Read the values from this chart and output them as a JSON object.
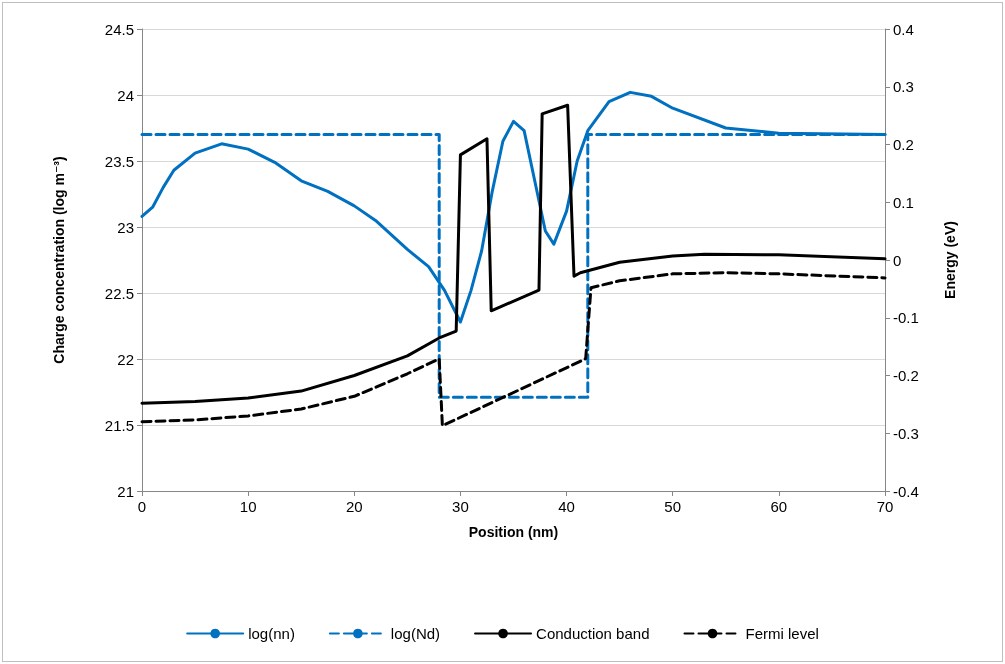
{
  "chart_data": {
    "type": "line",
    "xlabel": "Position (nm)",
    "ylabel": "Charge concentration (log m⁻³)",
    "y2label": "Energy (eV)",
    "xlim": [
      0,
      70
    ],
    "xticks": [
      0,
      10,
      20,
      30,
      40,
      50,
      60,
      70
    ],
    "ylim": [
      21,
      24.5
    ],
    "yticks": [
      21,
      21.5,
      22,
      22.5,
      23,
      23.5,
      24,
      24.5
    ],
    "y2lim": [
      -0.4,
      0.4
    ],
    "y2ticks": [
      -0.4,
      -0.3,
      -0.2,
      -0.1,
      0,
      0.1,
      0.2,
      0.3,
      0.4
    ],
    "grid": "y",
    "legend": "bottom",
    "marker": "none",
    "series": [
      {
        "name": "log(nn)",
        "color": "#0070c0",
        "line_style": "solid",
        "x": [
          0,
          1,
          2,
          3,
          5,
          7.5,
          10,
          12.5,
          15,
          17.5,
          20,
          22,
          25,
          27,
          28.5,
          29.5,
          30,
          31,
          32,
          33,
          34,
          35,
          36,
          37,
          38,
          38.8,
          40,
          41,
          42,
          44,
          46,
          48,
          50,
          55,
          60,
          70
        ],
        "values": [
          23.08,
          23.15,
          23.3,
          23.43,
          23.56,
          23.63,
          23.59,
          23.49,
          23.35,
          23.27,
          23.16,
          23.05,
          22.83,
          22.7,
          22.52,
          22.36,
          22.28,
          22.52,
          22.82,
          23.27,
          23.65,
          23.8,
          23.73,
          23.35,
          22.97,
          22.87,
          23.12,
          23.5,
          23.73,
          23.95,
          24.02,
          23.99,
          23.9,
          23.75,
          23.71,
          23.7
        ]
      },
      {
        "name": "log(Nd)",
        "color": "#0070c0",
        "line_style": "dashed",
        "x": [
          0,
          28,
          28,
          42,
          42,
          70
        ],
        "values": [
          23.7,
          23.7,
          21.71,
          21.71,
          23.7,
          23.7
        ]
      },
      {
        "name": "Conduction band",
        "color": "#000000",
        "line_style": "solid",
        "axis": "y2",
        "x": [
          0,
          5,
          10,
          15,
          20,
          25,
          28,
          29.6,
          30,
          32.5,
          32.9,
          37.4,
          37.7,
          40.1,
          40.7,
          41.3,
          45,
          50,
          53,
          60,
          70
        ],
        "values": [
          -0.248,
          -0.245,
          -0.239,
          -0.227,
          -0.2,
          -0.166,
          -0.135,
          -0.123,
          0.182,
          0.21,
          -0.088,
          -0.052,
          0.253,
          0.268,
          -0.028,
          -0.022,
          -0.004,
          0.007,
          0.01,
          0.009,
          0.002
        ]
      },
      {
        "name": "Fermi level",
        "color": "#000000",
        "line_style": "dashed",
        "axis": "y2",
        "x": [
          0,
          5,
          10,
          15,
          20,
          25,
          28,
          28.3,
          41.8,
          42.3,
          45,
          50,
          55,
          60,
          70
        ],
        "values": [
          -0.28,
          -0.277,
          -0.27,
          -0.258,
          -0.236,
          -0.197,
          -0.171,
          -0.287,
          -0.171,
          -0.048,
          -0.036,
          -0.024,
          -0.022,
          -0.024,
          -0.031
        ]
      }
    ]
  }
}
